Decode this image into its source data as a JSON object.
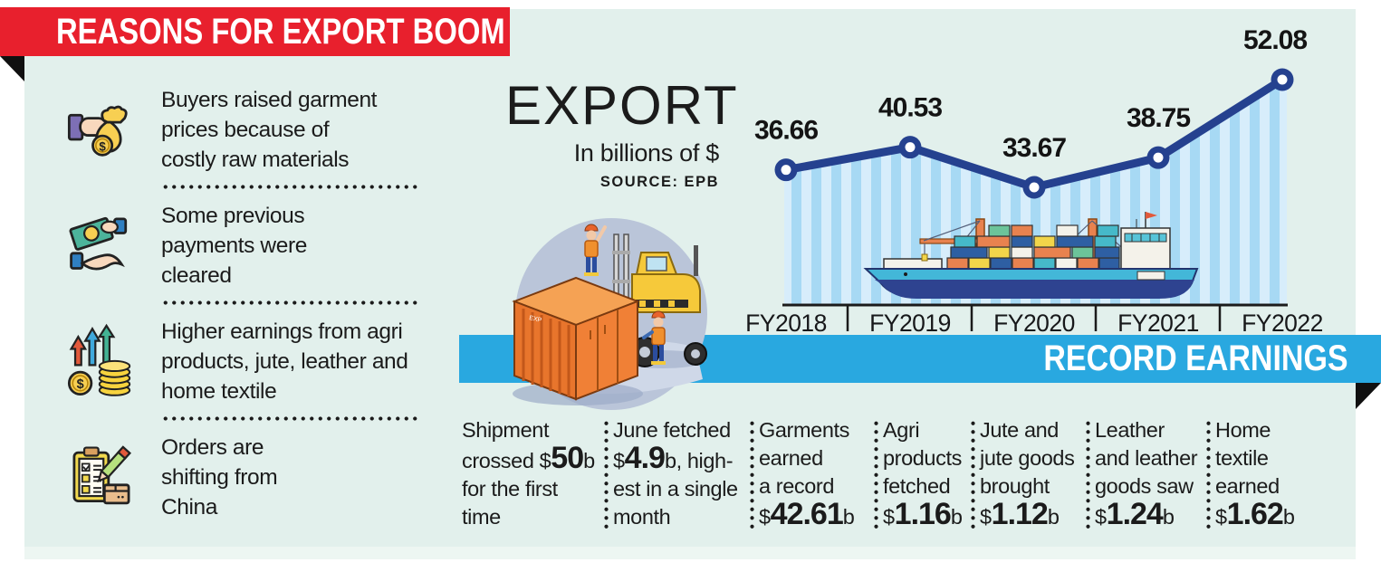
{
  "page": {
    "background": "#ffffff",
    "panel_background": "#e2f0ec"
  },
  "header_banner": {
    "label": "REASONS FOR EXPORT BOOM",
    "background": "#e8202d",
    "text_color": "#ffffff"
  },
  "reasons": [
    {
      "icon": "money-bag-hand-icon",
      "lines": [
        "Buyers raised garment",
        "prices because of",
        "costly raw materials"
      ],
      "divider_after": true
    },
    {
      "icon": "cash-exchange-icon",
      "lines": [
        "Some previous",
        "payments were",
        "cleared"
      ],
      "divider_after": true
    },
    {
      "icon": "rising-earnings-icon",
      "lines": [
        "Higher earnings from agri",
        "products, jute, leather and",
        "home textile"
      ],
      "divider_after": true
    },
    {
      "icon": "order-clipboard-icon",
      "lines": [
        "Orders are",
        "shifting from",
        "China"
      ],
      "divider_after": false
    }
  ],
  "export_heading": {
    "title": "EXPORT",
    "subtitle": "In billions of $",
    "source": "SOURCE: EPB"
  },
  "record_banner": {
    "label": "RECORD EARNINGS",
    "background": "#29a8e0",
    "text_color": "#ffffff"
  },
  "chart_data": {
    "type": "line",
    "title": "EXPORT",
    "subtitle": "In billions of $",
    "source": "SOURCE: EPB",
    "categories": [
      "FY2018",
      "FY2019",
      "FY2020",
      "FY2021",
      "FY2022"
    ],
    "values": [
      36.66,
      40.53,
      33.67,
      38.75,
      52.08
    ],
    "data_labels": [
      "36.66",
      "40.53",
      "33.67",
      "38.75",
      "52.08"
    ],
    "line_color": "#25418f",
    "marker": "circle-white-center",
    "area_style": "vertical-stripes",
    "area_colors": [
      "#a7d9f4",
      "#d7edfb"
    ],
    "gridlines": false,
    "legend": "none"
  },
  "stats": [
    {
      "lines": [
        [
          {
            "t": "Shipment"
          }
        ],
        [
          {
            "t": "crossed $"
          },
          {
            "t": "50",
            "b": 1
          },
          {
            "t": "b"
          }
        ],
        [
          {
            "t": "for the first"
          }
        ],
        [
          {
            "t": "time"
          }
        ]
      ]
    },
    {
      "lines": [
        [
          {
            "t": "June fetched"
          }
        ],
        [
          {
            "t": "$"
          },
          {
            "t": "4.9",
            "b": 1
          },
          {
            "t": "b, high-"
          }
        ],
        [
          {
            "t": "est in a single"
          }
        ],
        [
          {
            "t": "month"
          }
        ]
      ]
    },
    {
      "lines": [
        [
          {
            "t": "Garments"
          }
        ],
        [
          {
            "t": "earned"
          }
        ],
        [
          {
            "t": "a record"
          }
        ],
        [
          {
            "t": "$"
          },
          {
            "t": "42.61",
            "b": 1
          },
          {
            "t": "b"
          }
        ]
      ]
    },
    {
      "lines": [
        [
          {
            "t": "Agri"
          }
        ],
        [
          {
            "t": "products"
          }
        ],
        [
          {
            "t": "fetched"
          }
        ],
        [
          {
            "t": "$"
          },
          {
            "t": "1.16",
            "b": 1
          },
          {
            "t": "b"
          }
        ]
      ]
    },
    {
      "lines": [
        [
          {
            "t": "Jute and"
          }
        ],
        [
          {
            "t": "jute goods"
          }
        ],
        [
          {
            "t": "brought"
          }
        ],
        [
          {
            "t": "$"
          },
          {
            "t": "1.12",
            "b": 1
          },
          {
            "t": "b"
          }
        ]
      ]
    },
    {
      "lines": [
        [
          {
            "t": "Leather"
          }
        ],
        [
          {
            "t": "and leather"
          }
        ],
        [
          {
            "t": "goods saw"
          }
        ],
        [
          {
            "t": "$"
          },
          {
            "t": "1.24",
            "b": 1
          },
          {
            "t": "b"
          }
        ]
      ]
    },
    {
      "lines": [
        [
          {
            "t": "Home"
          }
        ],
        [
          {
            "t": "textile"
          }
        ],
        [
          {
            "t": "earned"
          }
        ],
        [
          {
            "t": "$"
          },
          {
            "t": "1.62",
            "b": 1
          },
          {
            "t": "b"
          }
        ]
      ]
    }
  ]
}
